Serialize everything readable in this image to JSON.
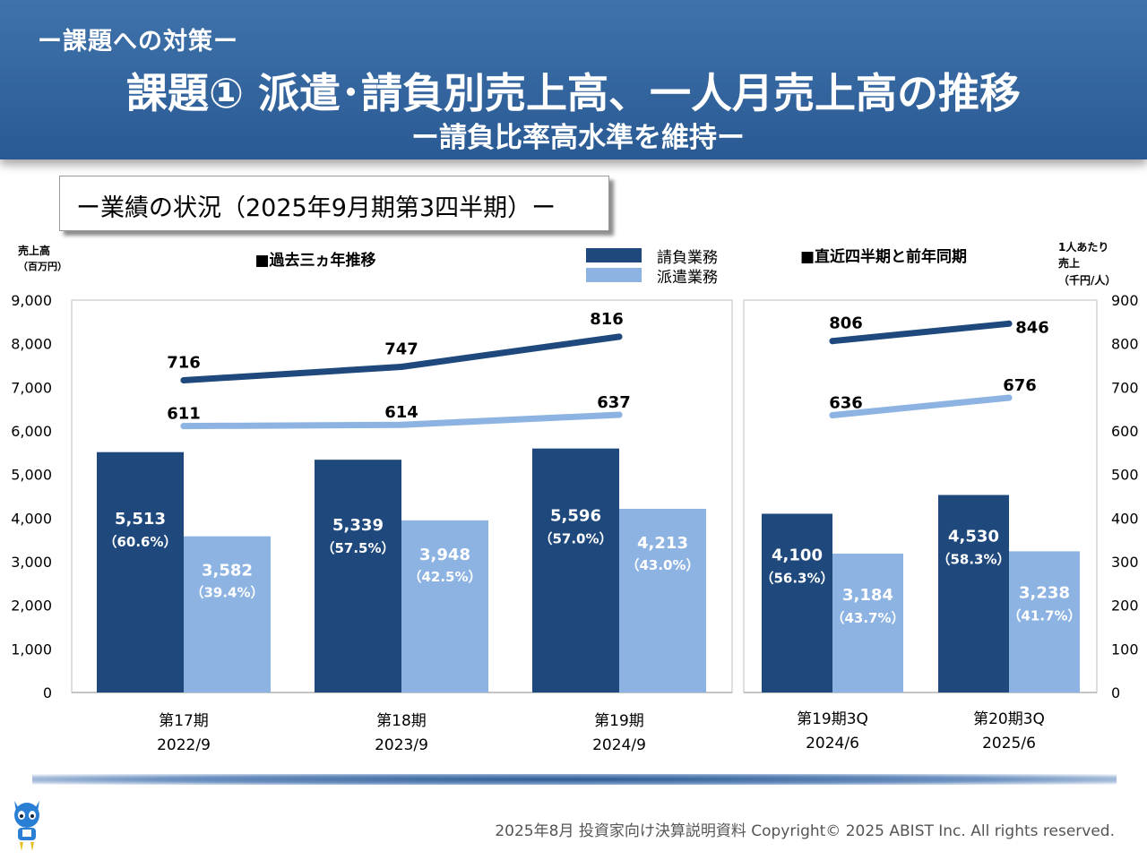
{
  "header": {
    "section_label": "ー課題への対策ー",
    "title": "課題① 派遣･請負別売上高、一人月売上高の推移",
    "subtitle": "ー請負比率高水準を維持ー"
  },
  "status_box": {
    "title": "ー業績の状況（2025年9月期第3四半期）ー"
  },
  "colors": {
    "contract": "#1f497d",
    "dispatch": "#8db3e2",
    "header": "#35679f"
  },
  "chart_data": [
    {
      "type": "bar",
      "title": "■過去三ヵ年推移",
      "ylabel": [
        "売上高",
        "（百万円）"
      ],
      "ylim": [
        0,
        9000
      ],
      "yticks": [
        "9,000",
        "8,000",
        "7,000",
        "6,000",
        "5,000",
        "4,000",
        "3,000",
        "2,000",
        "1,000",
        "0"
      ],
      "categories": [
        {
          "line1": "第17期",
          "line2": "2022/9"
        },
        {
          "line1": "第18期",
          "line2": "2023/9"
        },
        {
          "line1": "第19期",
          "line2": "2024/9"
        }
      ],
      "series": [
        {
          "name": "請負業務",
          "values": [
            5513,
            5339,
            5596
          ],
          "labels": [
            "5,513",
            "5,339",
            "5,596"
          ],
          "share_labels": [
            "（60.6%）",
            "（57.5%）",
            "（57.0%）"
          ]
        },
        {
          "name": "派遣業務",
          "values": [
            3582,
            3948,
            4213
          ],
          "labels": [
            "3,582",
            "3,948",
            "4,213"
          ],
          "share_labels": [
            "（39.4%）",
            "（42.5%）",
            "（43.0%）"
          ]
        }
      ],
      "lines": [
        {
          "series": "請負業務",
          "values": [
            716,
            747,
            816
          ],
          "labels": [
            "716",
            "747",
            "816"
          ]
        },
        {
          "series": "派遣業務",
          "values": [
            611,
            614,
            637
          ],
          "labels": [
            "611",
            "614",
            "637"
          ]
        }
      ],
      "y2lim": [
        0,
        900
      ],
      "legend": "top-right"
    },
    {
      "type": "bar",
      "title": "■直近四半期と前年同期",
      "y2label": [
        "1人あたり",
        "売上",
        "（千円/人）"
      ],
      "ylim": [
        0,
        9000
      ],
      "y2lim": [
        0,
        900
      ],
      "y2ticks": [
        "900",
        "800",
        "700",
        "600",
        "500",
        "400",
        "300",
        "200",
        "100",
        "0"
      ],
      "categories": [
        {
          "line1": "第19期3Q",
          "line2": "2024/6"
        },
        {
          "line1": "第20期3Q",
          "line2": "2025/6"
        }
      ],
      "series": [
        {
          "name": "請負業務",
          "values": [
            4100,
            4530
          ],
          "labels": [
            "4,100",
            "4,530"
          ],
          "share_labels": [
            "（56.3%）",
            "（58.3%）"
          ]
        },
        {
          "name": "派遣業務",
          "values": [
            3184,
            3238
          ],
          "labels": [
            "3,184",
            "3,238"
          ],
          "share_labels": [
            "（43.7%）",
            "（41.7%）"
          ]
        }
      ],
      "lines": [
        {
          "series": "請負業務",
          "values": [
            806,
            846
          ],
          "labels": [
            "806",
            "846"
          ]
        },
        {
          "series": "派遣業務",
          "values": [
            636,
            676
          ],
          "labels": [
            "636",
            "676"
          ]
        }
      ]
    }
  ],
  "footer": {
    "text": "2025年8月 投資家向け決算説明資料 Copyright© 2025 ABIST Inc. All rights reserved."
  }
}
